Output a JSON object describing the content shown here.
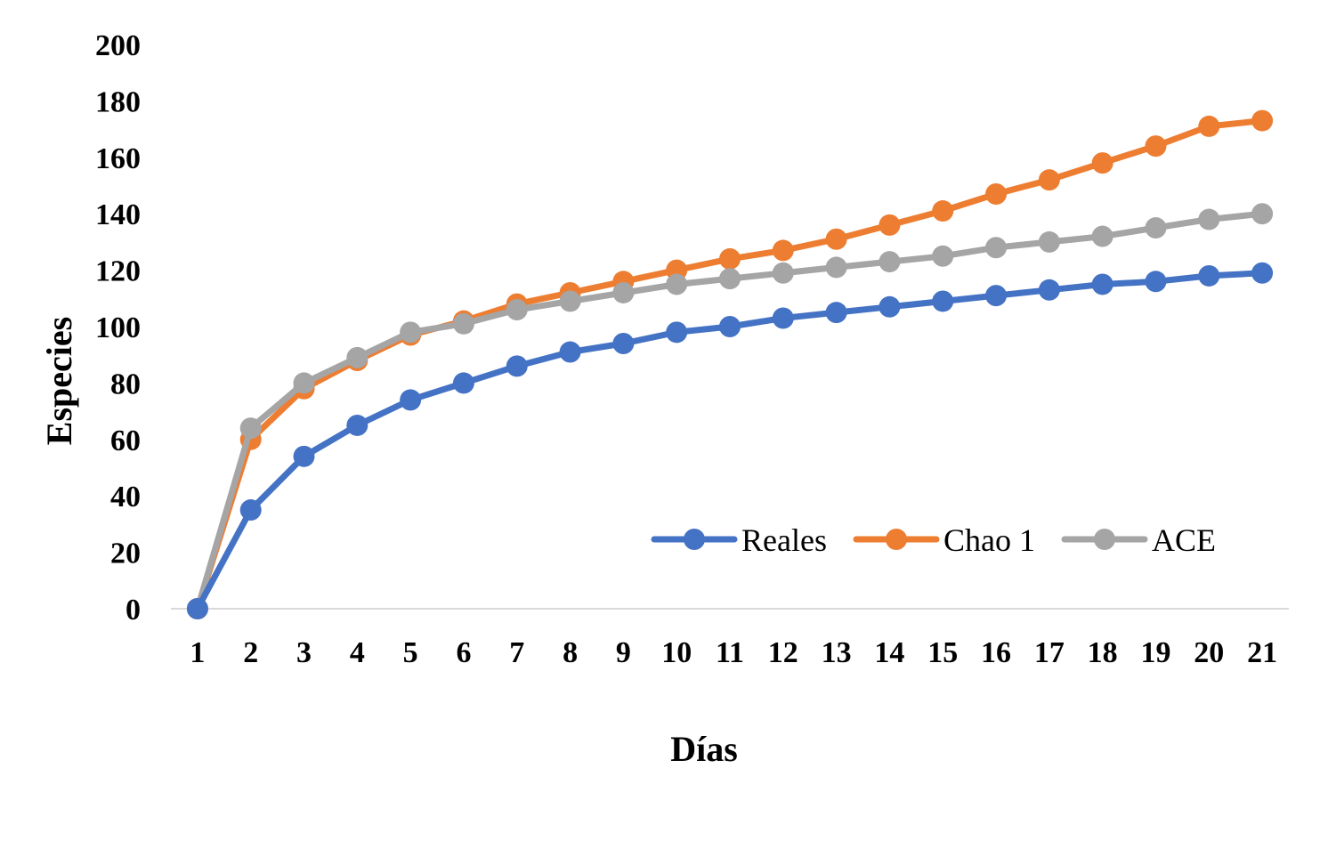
{
  "chart_data": {
    "type": "line",
    "title": "",
    "xlabel": "Días",
    "ylabel": "Especies",
    "categories": [
      "1",
      "2",
      "3",
      "4",
      "5",
      "6",
      "7",
      "8",
      "9",
      "10",
      "11",
      "12",
      "13",
      "14",
      "15",
      "16",
      "17",
      "18",
      "19",
      "20",
      "21"
    ],
    "y_ticks": [
      "0",
      "20",
      "40",
      "60",
      "80",
      "100",
      "120",
      "140",
      "160",
      "180",
      "200"
    ],
    "ylim": [
      0,
      200
    ],
    "grid": false,
    "legend_position": "bottom-right",
    "series": [
      {
        "name": "Reales",
        "color": "#4472C4",
        "values": [
          0,
          35,
          54,
          65,
          74,
          80,
          86,
          91,
          94,
          98,
          100,
          103,
          105,
          107,
          109,
          111,
          113,
          115,
          116,
          118,
          119
        ]
      },
      {
        "name": "Chao 1",
        "color": "#ED7D31",
        "values": [
          0,
          60,
          78,
          88,
          97,
          102,
          108,
          112,
          116,
          120,
          124,
          127,
          131,
          136,
          141,
          147,
          152,
          158,
          164,
          171,
          173
        ]
      },
      {
        "name": "ACE",
        "color": "#A5A5A5",
        "values": [
          0,
          64,
          80,
          89,
          98,
          101,
          106,
          109,
          112,
          115,
          117,
          119,
          121,
          123,
          125,
          128,
          130,
          132,
          135,
          138,
          140
        ]
      }
    ]
  }
}
